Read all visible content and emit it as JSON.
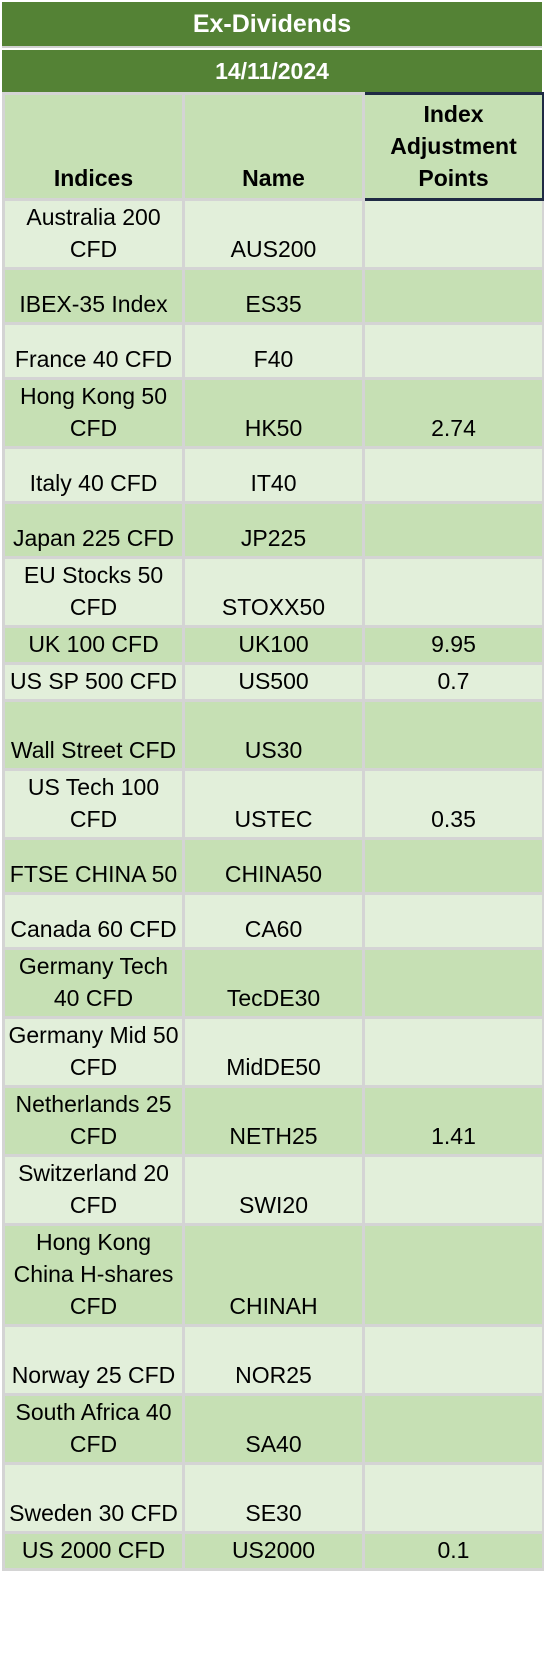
{
  "title": "Ex-Dividends",
  "date": "14/11/2024",
  "headers": {
    "indices": "Indices",
    "name": "Name",
    "points": "Index Adjustment Points"
  },
  "rows": [
    {
      "index": "Australia 200 CFD",
      "name": "AUS200",
      "points": ""
    },
    {
      "index": "IBEX-35 Index",
      "name": "ES35",
      "points": ""
    },
    {
      "index": "France 40 CFD",
      "name": "F40",
      "points": ""
    },
    {
      "index": "Hong Kong 50 CFD",
      "name": "HK50",
      "points": "2.74"
    },
    {
      "index": "Italy 40 CFD",
      "name": "IT40",
      "points": ""
    },
    {
      "index": "Japan 225 CFD",
      "name": "JP225",
      "points": ""
    },
    {
      "index": "EU Stocks 50 CFD",
      "name": "STOXX50",
      "points": ""
    },
    {
      "index": "UK 100 CFD",
      "name": "UK100",
      "points": "9.95"
    },
    {
      "index": "US SP 500 CFD",
      "name": "US500",
      "points": "0.7"
    },
    {
      "index": "Wall Street CFD",
      "name": "US30",
      "points": ""
    },
    {
      "index": "US Tech 100 CFD",
      "name": "USTEC",
      "points": "0.35"
    },
    {
      "index": "FTSE CHINA 50",
      "name": "CHINA50",
      "points": ""
    },
    {
      "index": "Canada 60 CFD",
      "name": "CA60",
      "points": ""
    },
    {
      "index": "Germany Tech 40 CFD",
      "name": "TecDE30",
      "points": ""
    },
    {
      "index": "Germany Mid 50 CFD",
      "name": "MidDE50",
      "points": ""
    },
    {
      "index": "Netherlands 25 CFD",
      "name": "NETH25",
      "points": "1.41"
    },
    {
      "index": "Switzerland 20 CFD",
      "name": "SWI20",
      "points": ""
    },
    {
      "index": "Hong Kong China H-shares CFD",
      "name": "CHINAH",
      "points": ""
    },
    {
      "index": "Norway 25 CFD",
      "name": "NOR25",
      "points": ""
    },
    {
      "index": "South Africa 40 CFD",
      "name": "SA40",
      "points": ""
    },
    {
      "index": "Sweden 30 CFD",
      "name": "SE30",
      "points": ""
    },
    {
      "index": "US 2000 CFD",
      "name": "US2000",
      "points": "0.1"
    }
  ]
}
